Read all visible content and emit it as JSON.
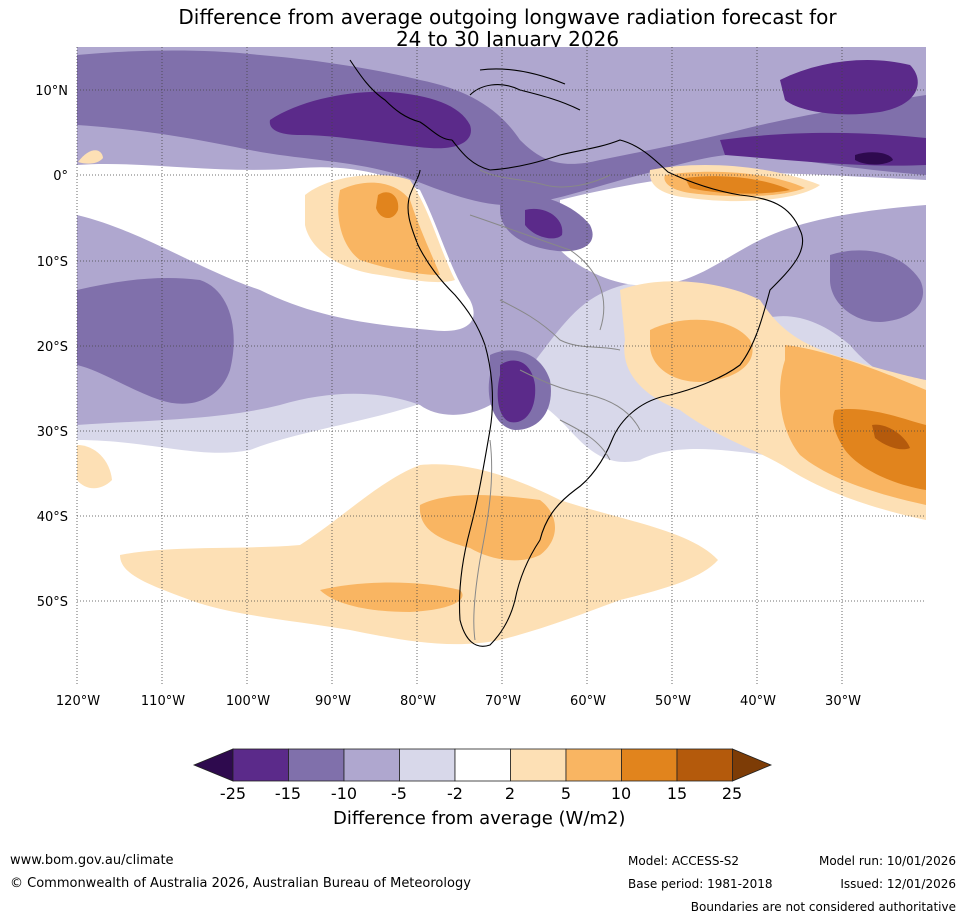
{
  "title": {
    "line1": "Difference from average outgoing longwave radiation forecast for",
    "line2": "24 to 30 January 2026"
  },
  "map": {
    "lat_labels": [
      "10°N",
      "0°",
      "10°S",
      "20°S",
      "30°S",
      "40°S",
      "50°S"
    ],
    "lon_labels": [
      "120°W",
      "110°W",
      "100°W",
      "90°W",
      "80°W",
      "70°W",
      "60°W",
      "50°W",
      "40°W",
      "30°W"
    ],
    "extent": {
      "lon_min": -120,
      "lon_max": -20,
      "lat_min": -60,
      "lat_max": 15
    }
  },
  "colorbar": {
    "ticks": [
      "-25",
      "-15",
      "-10",
      "-5",
      "-2",
      "2",
      "5",
      "10",
      "15",
      "25"
    ],
    "colors": [
      "#2e0a4e",
      "#5b2a8a",
      "#8070ab",
      "#afa7cf",
      "#d8d8ea",
      "#ffffff",
      "#fde0b5",
      "#f9b562",
      "#e1841d",
      "#b45a0c",
      "#7d3c06"
    ],
    "label": "Difference from average (W/m2)"
  },
  "footer": {
    "url": "www.bom.gov.au/climate",
    "copyright": "© Commonwealth of Australia 2026, Australian Bureau of Meteorology",
    "model": "Model: ACCESS-S2",
    "base_period": "Base period: 1981-2018",
    "model_run": "Model run: 10/01/2026",
    "issued": "Issued: 12/01/2026",
    "disclaimer": "Boundaries are not considered authoritative"
  }
}
